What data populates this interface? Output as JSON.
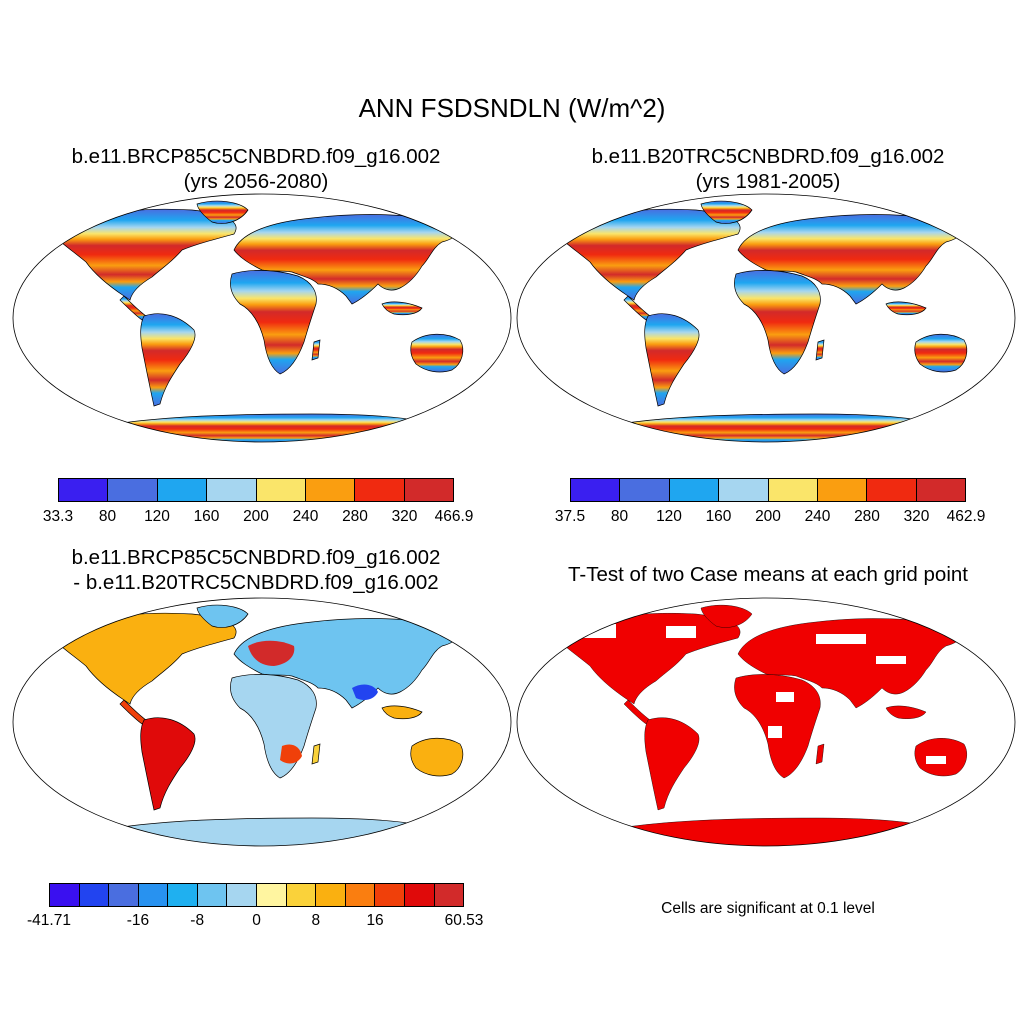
{
  "title": "ANN FSDSNDLN (W/m^2)",
  "panels": {
    "p1": {
      "line1": "b.e11.BRCP85C5CNBDRD.f09_g16.002",
      "line2": "(yrs 2056-2080)"
    },
    "p2": {
      "line1": "b.e11.B20TRC5CNBDRD.f09_g16.002",
      "line2": "(yrs 1981-2005)"
    },
    "p3": {
      "line1": "b.e11.BRCP85C5CNBDRD.f09_g16.002",
      "line2": "- b.e11.B20TRC5CNBDRD.f09_g16.002"
    },
    "p4": {
      "line1": "T-Test of two Case means at each grid point"
    }
  },
  "colorbars": {
    "cb1": {
      "colors": [
        "#3a1ff0",
        "#4a6ee0",
        "#1fa6f0",
        "#a6d6f0",
        "#fae56a",
        "#fa9e10",
        "#f02a10",
        "#d22a2a"
      ],
      "labels": [
        "33.3",
        "80",
        "120",
        "160",
        "200",
        "240",
        "280",
        "320",
        "466.9"
      ]
    },
    "cb2": {
      "colors": [
        "#3a1ff0",
        "#4a6ee0",
        "#1fa6f0",
        "#a6d6f0",
        "#fae56a",
        "#fa9e10",
        "#f02a10",
        "#d22a2a"
      ],
      "labels": [
        "37.5",
        "80",
        "120",
        "160",
        "200",
        "240",
        "280",
        "320",
        "462.9"
      ]
    },
    "cb3": {
      "colors": [
        "#3a10f0",
        "#2244f0",
        "#4a6ee0",
        "#2892f0",
        "#1fb0f0",
        "#6ec4f0",
        "#a6d6f0",
        "#fff5a0",
        "#fad23a",
        "#fab010",
        "#fa7e10",
        "#f0400a",
        "#e00a0a",
        "#d22a2a"
      ],
      "labels": [
        "-41.71",
        "",
        "",
        "-16",
        "",
        "-8",
        "",
        "0",
        "",
        "8",
        "",
        "16",
        "",
        "",
        "60.53"
      ]
    }
  },
  "note": "Cells are significant at 0.1 level",
  "map_colors": {
    "ocean": "#ffffff",
    "border": "#000000",
    "significant": "#f00000"
  }
}
